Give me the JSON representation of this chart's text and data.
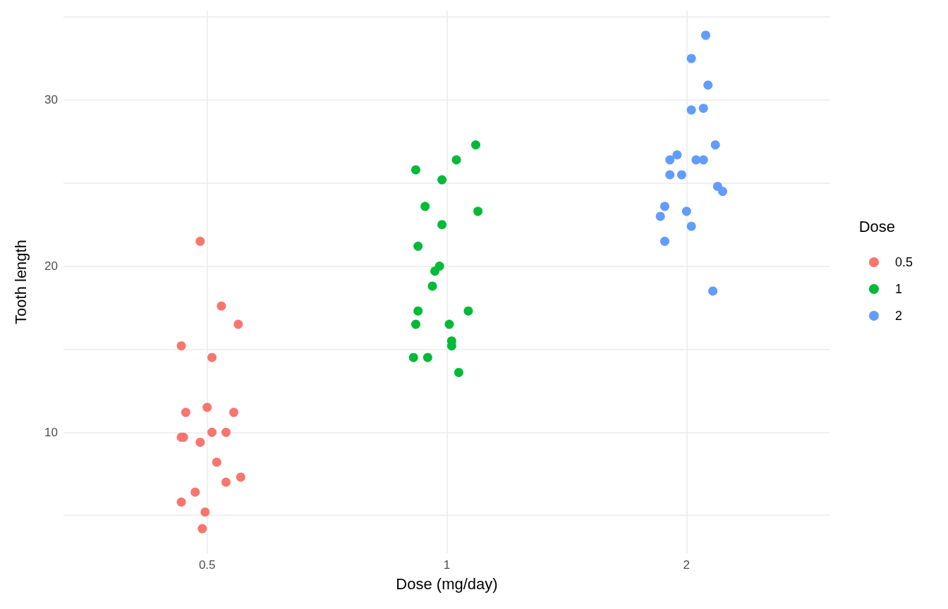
{
  "chart_data": {
    "type": "scatter",
    "xlabel": "Dose (mg/day)",
    "ylabel": "Tooth length",
    "legend_title": "Dose",
    "legend": "right",
    "grid": true,
    "marker": "circle",
    "log": "x",
    "xlim": [
      0.33,
      3.03
    ],
    "xticks": [
      0.5,
      1,
      2
    ],
    "ylim": [
      2.715,
      35.385
    ],
    "yticks": [
      {
        "value": 5,
        "label": null
      },
      10,
      {
        "value": 15,
        "label": null
      },
      20,
      {
        "value": 25,
        "label": null
      },
      30,
      {
        "value": 35,
        "label": null
      }
    ],
    "series": [
      {
        "name": "0.5",
        "color": "#f8766d",
        "x": [
          0.49,
          0.521,
          0.547,
          0.464,
          0.507,
          0.5,
          0.47,
          0.54,
          0.507,
          0.528,
          0.464,
          0.467,
          0.49,
          0.514,
          0.551,
          0.528,
          0.483,
          0.464,
          0.497,
          0.493
        ],
        "values": [
          21.5,
          17.6,
          16.5,
          15.2,
          14.5,
          11.5,
          11.2,
          11.2,
          10.0,
          10.0,
          9.7,
          9.7,
          9.4,
          8.2,
          7.3,
          7.0,
          6.4,
          5.8,
          5.2,
          4.2
        ]
      },
      {
        "name": "1",
        "color": "#00ba38",
        "x": [
          1.087,
          1.028,
          0.914,
          0.986,
          0.939,
          1.094,
          0.986,
          0.92,
          0.979,
          0.966,
          0.959,
          0.92,
          1.064,
          0.914,
          1.007,
          1.014,
          1.014,
          0.908,
          0.946,
          1.035
        ],
        "values": [
          27.3,
          26.4,
          25.8,
          25.2,
          23.6,
          23.3,
          22.5,
          21.2,
          20.0,
          19.7,
          18.8,
          17.3,
          17.3,
          16.5,
          16.5,
          15.5,
          15.2,
          14.5,
          14.5,
          13.6
        ]
      },
      {
        "name": "2",
        "color": "#619cff",
        "x": [
          2.114,
          2.028,
          2.128,
          2.028,
          2.1,
          2.174,
          1.946,
          1.906,
          2.056,
          2.1,
          1.906,
          1.972,
          2.188,
          2.22,
          1.878,
          2,
          1.854,
          2.028,
          1.878,
          2.158
        ],
        "values": [
          33.9,
          32.5,
          30.9,
          29.4,
          29.5,
          27.3,
          26.7,
          26.4,
          26.4,
          26.4,
          25.5,
          25.5,
          24.8,
          24.5,
          23.6,
          23.3,
          23.0,
          22.4,
          21.5,
          18.5
        ]
      }
    ]
  }
}
